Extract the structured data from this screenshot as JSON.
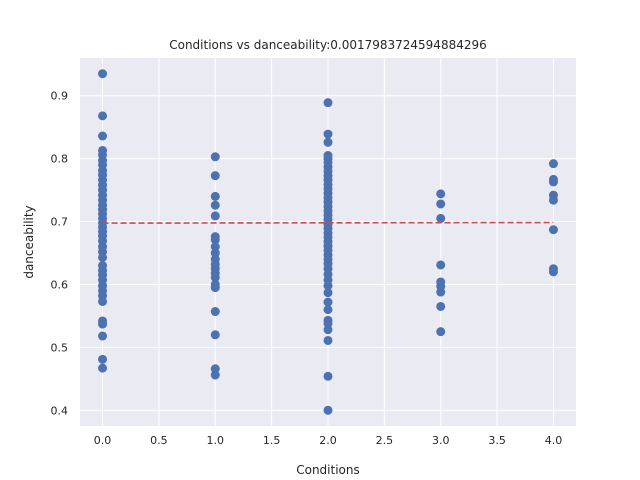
{
  "chart_data": {
    "type": "scatter",
    "title": "Conditions vs danceability:0.0017983724594884296",
    "xlabel": "Conditions",
    "ylabel": "danceability",
    "xlim": [
      -0.2,
      4.2
    ],
    "ylim": [
      0.375,
      0.96
    ],
    "x_ticks": [
      0.0,
      0.5,
      1.0,
      1.5,
      2.0,
      2.5,
      3.0,
      3.5,
      4.0
    ],
    "x_tick_labels": [
      "0.0",
      "0.5",
      "1.0",
      "1.5",
      "2.0",
      "2.5",
      "3.0",
      "3.5",
      "4.0"
    ],
    "y_ticks": [
      0.4,
      0.5,
      0.6,
      0.7,
      0.8,
      0.9
    ],
    "y_tick_labels": [
      "0.4",
      "0.5",
      "0.6",
      "0.7",
      "0.8",
      "0.9"
    ],
    "grid": true,
    "background": "#eaeaf2",
    "point_color": "#4c72b0",
    "trend_color": "#c44e52",
    "points": [
      [
        0,
        0.935
      ],
      [
        0,
        0.868
      ],
      [
        0,
        0.836
      ],
      [
        0,
        0.813
      ],
      [
        0,
        0.806
      ],
      [
        0,
        0.797
      ],
      [
        0,
        0.79
      ],
      [
        0,
        0.781
      ],
      [
        0,
        0.774
      ],
      [
        0,
        0.766
      ],
      [
        0,
        0.758
      ],
      [
        0,
        0.75
      ],
      [
        0,
        0.742
      ],
      [
        0,
        0.734
      ],
      [
        0,
        0.726
      ],
      [
        0,
        0.719
      ],
      [
        0,
        0.712
      ],
      [
        0,
        0.705
      ],
      [
        0,
        0.698
      ],
      [
        0,
        0.691
      ],
      [
        0,
        0.684
      ],
      [
        0,
        0.677
      ],
      [
        0,
        0.669
      ],
      [
        0,
        0.66
      ],
      [
        0,
        0.652
      ],
      [
        0,
        0.643
      ],
      [
        0,
        0.63
      ],
      [
        0,
        0.622
      ],
      [
        0,
        0.615
      ],
      [
        0,
        0.607
      ],
      [
        0,
        0.598
      ],
      [
        0,
        0.59
      ],
      [
        0,
        0.582
      ],
      [
        0,
        0.573
      ],
      [
        0,
        0.542
      ],
      [
        0,
        0.537
      ],
      [
        0,
        0.518
      ],
      [
        0,
        0.481
      ],
      [
        0,
        0.467
      ],
      [
        1,
        0.803
      ],
      [
        1,
        0.773
      ],
      [
        1,
        0.74
      ],
      [
        1,
        0.726
      ],
      [
        1,
        0.709
      ],
      [
        1,
        0.676
      ],
      [
        1,
        0.671
      ],
      [
        1,
        0.66
      ],
      [
        1,
        0.65
      ],
      [
        1,
        0.64
      ],
      [
        1,
        0.632
      ],
      [
        1,
        0.625
      ],
      [
        1,
        0.618
      ],
      [
        1,
        0.611
      ],
      [
        1,
        0.6
      ],
      [
        1,
        0.595
      ],
      [
        1,
        0.557
      ],
      [
        1,
        0.52
      ],
      [
        1,
        0.466
      ],
      [
        1,
        0.456
      ],
      [
        2,
        0.889
      ],
      [
        2,
        0.839
      ],
      [
        2,
        0.826
      ],
      [
        2,
        0.805
      ],
      [
        2,
        0.8
      ],
      [
        2,
        0.794
      ],
      [
        2,
        0.787
      ],
      [
        2,
        0.78
      ],
      [
        2,
        0.773
      ],
      [
        2,
        0.766
      ],
      [
        2,
        0.759
      ],
      [
        2,
        0.752
      ],
      [
        2,
        0.745
      ],
      [
        2,
        0.738
      ],
      [
        2,
        0.731
      ],
      [
        2,
        0.724
      ],
      [
        2,
        0.717
      ],
      [
        2,
        0.71
      ],
      [
        2,
        0.703
      ],
      [
        2,
        0.696
      ],
      [
        2,
        0.689
      ],
      [
        2,
        0.682
      ],
      [
        2,
        0.675
      ],
      [
        2,
        0.668
      ],
      [
        2,
        0.661
      ],
      [
        2,
        0.654
      ],
      [
        2,
        0.647
      ],
      [
        2,
        0.64
      ],
      [
        2,
        0.633
      ],
      [
        2,
        0.625
      ],
      [
        2,
        0.616
      ],
      [
        2,
        0.607
      ],
      [
        2,
        0.598
      ],
      [
        2,
        0.587
      ],
      [
        2,
        0.572
      ],
      [
        2,
        0.56
      ],
      [
        2,
        0.543
      ],
      [
        2,
        0.538
      ],
      [
        2,
        0.528
      ],
      [
        2,
        0.511
      ],
      [
        2,
        0.454
      ],
      [
        2,
        0.4
      ],
      [
        3,
        0.744
      ],
      [
        3,
        0.728
      ],
      [
        3,
        0.705
      ],
      [
        3,
        0.631
      ],
      [
        3,
        0.604
      ],
      [
        3,
        0.597
      ],
      [
        3,
        0.588
      ],
      [
        3,
        0.565
      ],
      [
        3,
        0.525
      ],
      [
        4,
        0.792
      ],
      [
        4,
        0.767
      ],
      [
        4,
        0.763
      ],
      [
        4,
        0.742
      ],
      [
        4,
        0.734
      ],
      [
        4,
        0.687
      ],
      [
        4,
        0.625
      ],
      [
        4,
        0.62
      ]
    ],
    "trend_line": {
      "x": [
        0,
        4
      ],
      "y": [
        0.6975,
        0.6985
      ],
      "style": "dashed"
    }
  }
}
